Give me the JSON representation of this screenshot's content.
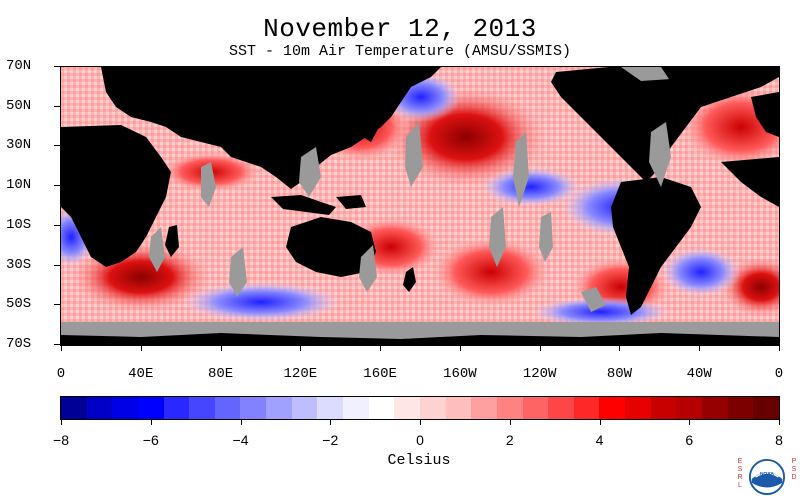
{
  "header": {
    "title": "November 12, 2013",
    "subtitle": "SST - 10m Air Temperature (AMSU/SSMIS)"
  },
  "map": {
    "latitude_labels": [
      "70N",
      "50N",
      "30N",
      "10N",
      "10S",
      "30S",
      "50S",
      "70S"
    ],
    "longitude_labels": [
      "0",
      "40E",
      "80E",
      "120E",
      "160E",
      "160W",
      "120W",
      "80W",
      "40W",
      "0"
    ],
    "land_color": "#000000",
    "missing_color": "#9a9a9a"
  },
  "colorbar": {
    "tick_labels": [
      "−8",
      "−6",
      "−4",
      "−2",
      "0",
      "2",
      "4",
      "6",
      "8"
    ],
    "unit_label": "Celsius",
    "range": [
      -8,
      8
    ],
    "colors": [
      "#000096",
      "#0000c8",
      "#0000e6",
      "#0000ff",
      "#2828ff",
      "#4646ff",
      "#6464ff",
      "#8282ff",
      "#a0a0ff",
      "#bebeff",
      "#dcdcff",
      "#f0f0ff",
      "#ffffff",
      "#ffe6e6",
      "#ffd2d2",
      "#ffbebe",
      "#ffa0a0",
      "#ff8282",
      "#ff6464",
      "#ff4646",
      "#ff2828",
      "#ff0000",
      "#e60000",
      "#c80000",
      "#b40000",
      "#960000",
      "#7d0000",
      "#690000"
    ]
  },
  "branding": {
    "left_text": "ESRL",
    "right_text": "PSD",
    "logo_text": "NOAA",
    "logo_color": "#1a5aa8"
  }
}
